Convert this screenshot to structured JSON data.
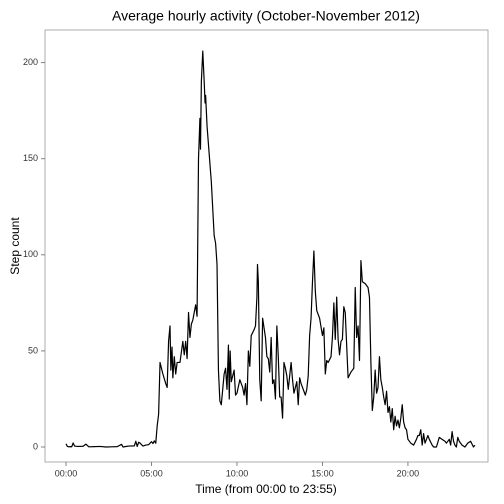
{
  "chart_data": {
    "type": "line",
    "title": "Average hourly activity (October-November 2012)",
    "xlabel": "Time (from 00:00 to 23:55)",
    "ylabel": "Step count",
    "color": "#000000",
    "x": [
      0,
      5,
      10,
      15,
      20,
      25,
      30,
      40,
      60,
      70,
      80,
      100,
      120,
      140,
      160,
      180,
      195,
      200,
      220,
      240,
      245,
      250,
      255,
      260,
      270,
      280,
      290,
      300,
      305,
      310,
      315,
      320,
      325,
      330,
      340,
      350,
      355,
      360,
      365,
      368,
      372,
      375,
      380,
      385,
      390,
      400,
      410,
      415,
      420,
      425,
      430,
      435,
      440,
      445,
      450,
      455,
      460,
      465,
      470,
      472,
      475,
      480,
      485,
      488,
      490,
      495,
      510,
      520,
      525,
      530,
      535,
      540,
      545,
      550,
      555,
      560,
      565,
      570,
      573,
      576,
      580,
      585,
      590,
      595,
      600,
      610,
      620,
      625,
      630,
      635,
      640,
      645,
      650,
      660,
      665,
      670,
      672,
      675,
      680,
      685,
      690,
      700,
      705,
      710,
      715,
      720,
      725,
      730,
      735,
      740,
      745,
      750,
      755,
      760,
      765,
      770,
      775,
      780,
      790,
      795,
      800,
      810,
      815,
      820,
      825,
      840,
      845,
      850,
      855,
      860,
      865,
      870,
      875,
      880,
      890,
      900,
      905,
      910,
      915,
      920,
      930,
      935,
      940,
      945,
      950,
      955,
      960,
      965,
      970,
      975,
      980,
      990,
      1000,
      1010,
      1015,
      1020,
      1025,
      1030,
      1035,
      1040,
      1050,
      1060,
      1065,
      1070,
      1075,
      1080,
      1085,
      1090,
      1095,
      1100,
      1105,
      1110,
      1115,
      1120,
      1125,
      1130,
      1135,
      1140,
      1145,
      1150,
      1155,
      1160,
      1165,
      1170,
      1175,
      1180,
      1185,
      1190,
      1195,
      1200,
      1210,
      1220,
      1230,
      1235,
      1240,
      1245,
      1250,
      1255,
      1260,
      1265,
      1270,
      1275,
      1285,
      1290,
      1300,
      1310,
      1320,
      1330,
      1335,
      1345,
      1350,
      1355,
      1360,
      1365,
      1370,
      1375,
      1380,
      1390,
      1400,
      1410,
      1420,
      1430,
      1435
    ],
    "values": [
      1.7,
      0.3,
      0.1,
      0.2,
      0.1,
      2.1,
      0.5,
      0.3,
      0.4,
      1.5,
      0.1,
      0.2,
      0.3,
      0,
      0.1,
      0.2,
      1.4,
      0,
      0.5,
      0.6,
      3,
      0.3,
      2.5,
      2,
      0.5,
      1,
      1.2,
      2.8,
      1.8,
      3.2,
      2,
      11,
      17,
      44,
      38,
      33,
      31,
      55,
      63,
      40,
      52,
      36,
      47,
      38,
      44,
      44,
      55,
      48,
      55,
      46,
      70,
      57,
      64,
      66,
      70,
      74,
      68,
      150,
      171,
      155,
      190,
      206,
      190,
      179,
      183,
      167,
      138,
      110,
      106,
      95,
      40,
      24,
      22,
      30,
      38,
      41,
      30,
      53,
      25,
      50,
      34,
      37,
      40,
      27,
      28,
      35,
      31,
      27,
      33,
      22,
      50,
      42,
      58,
      61,
      63,
      78,
      95,
      86,
      35,
      24,
      67,
      57,
      47,
      46,
      39,
      57,
      33,
      35,
      25,
      63,
      47,
      26,
      26,
      15,
      44,
      41,
      37,
      30,
      44,
      35,
      28,
      34,
      22,
      36,
      33,
      27,
      30,
      37,
      58,
      67,
      86,
      102,
      81,
      71,
      67,
      58,
      62,
      38,
      45,
      44,
      47,
      57,
      75,
      56,
      78,
      56,
      48,
      55,
      56,
      73,
      70,
      36,
      39,
      41,
      83,
      57,
      63,
      45,
      97,
      86,
      85,
      83,
      78,
      44,
      19,
      26,
      40,
      28,
      31,
      47,
      35,
      31,
      26,
      22,
      29,
      18,
      21,
      13,
      20,
      9,
      16,
      11,
      14,
      10,
      15,
      22,
      13,
      10,
      9,
      4,
      2,
      1,
      4,
      6,
      6,
      9,
      1,
      7,
      2,
      4,
      6,
      4,
      1,
      0,
      0,
      5,
      4,
      3,
      2,
      4,
      1,
      8,
      3,
      1,
      0,
      5,
      3,
      1,
      0,
      2,
      3,
      0,
      1
    ],
    "xlim": [
      -73.7,
      1481
    ],
    "xticks": [
      {
        "value": 0,
        "label": "00:00"
      },
      {
        "value": 300,
        "label": "05:00"
      },
      {
        "value": 600,
        "label": "10:00"
      },
      {
        "value": 900,
        "label": "15:00"
      },
      {
        "value": 1200,
        "label": "20:00"
      }
    ],
    "ylim": [
      -7.8,
      217
    ],
    "yticks": [
      0,
      50,
      100,
      150,
      200
    ]
  }
}
